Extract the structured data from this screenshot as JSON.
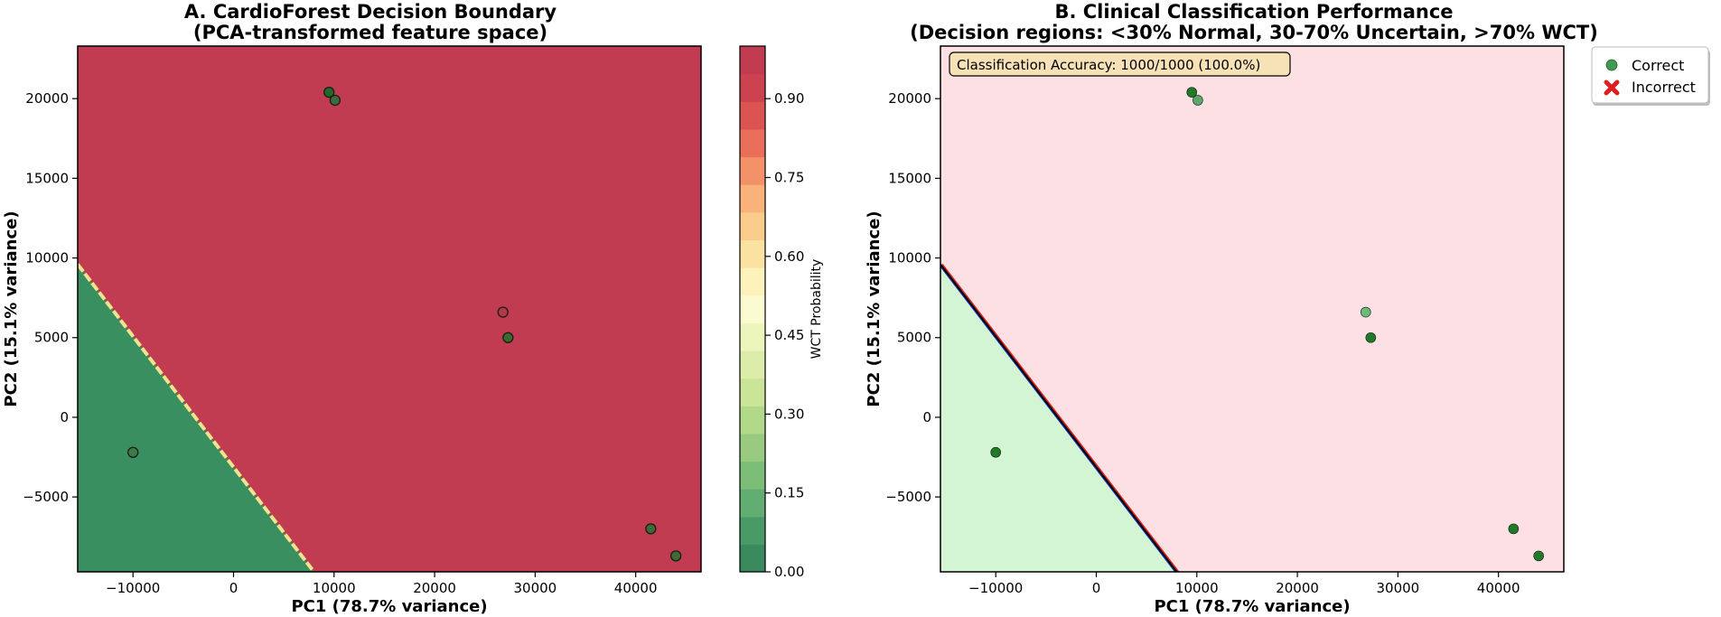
{
  "chart_data": [
    {
      "type": "scatter",
      "subtype": "decision-boundary-contour",
      "title_line1": "A. CardioForest Decision Boundary",
      "title_line2": "(PCA-transformed feature space)",
      "xlabel": "PC1 (78.7% variance)",
      "ylabel": "PC2 (15.1% variance)",
      "xlim": [
        -15500,
        46500
      ],
      "ylim": [
        -9700,
        23300
      ],
      "xticks": [
        -10000,
        0,
        10000,
        20000,
        30000,
        40000
      ],
      "xtick_labels": [
        "−10000",
        "0",
        "10000",
        "20000",
        "30000",
        "40000"
      ],
      "yticks": [
        -5000,
        0,
        5000,
        10000,
        15000,
        20000
      ],
      "ytick_labels": [
        "−5000",
        "0",
        "5000",
        "10000",
        "15000",
        "20000"
      ],
      "boundary_line": [
        [
          -15500,
          9600
        ],
        [
          8000,
          -9700
        ]
      ],
      "region_colors": {
        "wct": "#c13c50",
        "normal": "#3a8f60",
        "boundary": "#f0e48c"
      },
      "colorbar": {
        "label": "WCT Probability",
        "range": [
          0,
          1
        ],
        "ticks": [
          0.0,
          0.15,
          0.3,
          0.45,
          0.6,
          0.75,
          0.9
        ],
        "tick_labels": [
          "0.00",
          "0.15",
          "0.30",
          "0.45",
          "0.60",
          "0.75",
          "0.90"
        ],
        "bands": [
          "#3a8a5e",
          "#4a9a68",
          "#62ad72",
          "#7cbd78",
          "#98cb80",
          "#b2d98a",
          "#cae498",
          "#dcedaa",
          "#ecf5bc",
          "#fafbd0",
          "#fdf2bc",
          "#fce2a2",
          "#fbcd8c",
          "#f8b27a",
          "#f39168",
          "#ea6f5a",
          "#dc5451",
          "#cc4250",
          "#c13c50"
        ]
      },
      "points": [
        {
          "x": 9500,
          "y": 20400,
          "color": "#1f6a2a"
        },
        {
          "x": 10100,
          "y": 19900,
          "color": "#3d6b3d"
        },
        {
          "x": 26800,
          "y": 6600,
          "color": "#b23a48"
        },
        {
          "x": 27300,
          "y": 5000,
          "color": "#3b6b2c"
        },
        {
          "x": -10000,
          "y": -2200,
          "color": "#3d7a4a"
        },
        {
          "x": 41500,
          "y": -7000,
          "color": "#3e6b35"
        },
        {
          "x": 44000,
          "y": -8700,
          "color": "#3e6b35"
        }
      ]
    },
    {
      "type": "scatter",
      "subtype": "classification-regions",
      "title_line1": "B. Clinical Classification Performance",
      "title_line2": "(Decision regions: <30% Normal, 30-70% Uncertain, >70% WCT)",
      "xlabel": "PC1 (78.7% variance)",
      "ylabel": "PC2 (15.1% variance)",
      "xlim": [
        -15500,
        46500
      ],
      "ylim": [
        -9700,
        23300
      ],
      "xticks": [
        -10000,
        0,
        10000,
        20000,
        30000,
        40000
      ],
      "xtick_labels": [
        "−10000",
        "0",
        "10000",
        "20000",
        "30000",
        "40000"
      ],
      "yticks": [
        -5000,
        0,
        5000,
        10000,
        15000,
        20000
      ],
      "ytick_labels": [
        "−5000",
        "0",
        "5000",
        "10000",
        "15000",
        "20000"
      ],
      "boundary_line": [
        [
          -15500,
          9600
        ],
        [
          8000,
          -9700
        ]
      ],
      "region_colors": {
        "wct": "#fde0e4",
        "normal": "#d4f5d4"
      },
      "accuracy_text": "Classification Accuracy: 1000/1000 (100.0%)",
      "legend": [
        {
          "label": "Correct",
          "marker": "circle",
          "color": "#3f9b4f"
        },
        {
          "label": "Incorrect",
          "marker": "x",
          "color": "#e02020"
        }
      ],
      "points": [
        {
          "x": 9500,
          "y": 20400,
          "color": "#1f7a2a"
        },
        {
          "x": 10100,
          "y": 19900,
          "color": "#5aa86a"
        },
        {
          "x": 26800,
          "y": 6600,
          "color": "#6dbb78"
        },
        {
          "x": 27300,
          "y": 5000,
          "color": "#1f7a2a"
        },
        {
          "x": -10000,
          "y": -2200,
          "color": "#1f7a2a"
        },
        {
          "x": 41500,
          "y": -7000,
          "color": "#1f7a2a"
        },
        {
          "x": 44000,
          "y": -8700,
          "color": "#1f7a2a"
        }
      ]
    }
  ]
}
